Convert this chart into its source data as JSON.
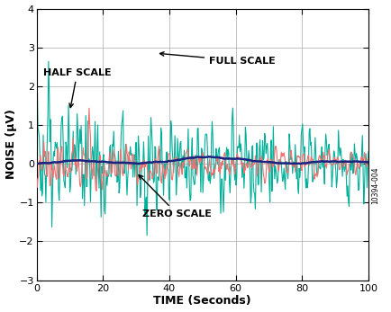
{
  "xlabel": "TIME (Seconds)",
  "ylabel": "NOISE (μV)",
  "xlim": [
    0,
    100
  ],
  "ylim": [
    -3,
    4
  ],
  "yticks": [
    -3,
    -2,
    -1,
    0,
    1,
    2,
    3,
    4
  ],
  "xticks": [
    0,
    20,
    40,
    60,
    80,
    100
  ],
  "color_full": "#00B09A",
  "color_half": "#F07070",
  "color_zero": "#1A237E",
  "annotation_fontsize": 8,
  "label_fontsize": 9,
  "tick_fontsize": 8,
  "figure_color": "#FFFFFF",
  "watermark": "10394-004",
  "n_points": 500
}
